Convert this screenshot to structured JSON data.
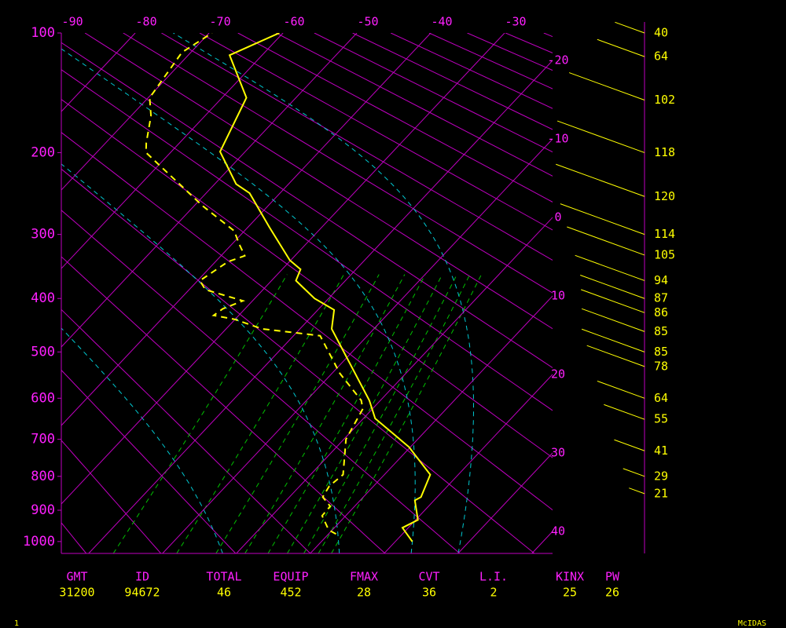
{
  "chart_data": {
    "type": "skewt",
    "ylim": [
      1040,
      100
    ],
    "yticks": [
      100,
      200,
      300,
      400,
      500,
      600,
      700,
      800,
      900,
      1000
    ],
    "xlim": [
      -23.7,
      42.8
    ],
    "xticks": [
      -90,
      -80,
      -70,
      -60,
      -50,
      -40,
      -30
    ],
    "isotherm_ticks": [
      -20,
      -10,
      0,
      10,
      20,
      30,
      40
    ],
    "axis_color": "#ff20ff",
    "series": [
      {
        "color": "#ffff00",
        "style": "solid",
        "pressure": [
          1000,
          955,
          930,
          870,
          860,
          795,
          720,
          648,
          605,
          582,
          455,
          420,
          400,
          370,
          352,
          338,
          290,
          246,
          235,
          199,
          148,
          115,
          100
        ],
        "values": [
          22.3,
          19.2,
          20.3,
          17.4,
          17.8,
          16.2,
          9.8,
          1.6,
          -1.5,
          -3.5,
          -15.7,
          -17.8,
          -21.9,
          -26.7,
          -27.5,
          -30.1,
          -37.1,
          -44.1,
          -47.1,
          -53.4,
          -56.7,
          -64.4,
          -60.5
        ]
      },
      {
        "color": "#ffff00",
        "style": "dashed",
        "pressure": [
          975,
          962,
          917,
          888,
          860,
          828,
          795,
          700,
          625,
          605,
          545,
          468,
          461,
          455,
          437,
          430,
          418,
          404,
          385,
          370,
          340,
          331,
          314,
          295,
          262,
          200,
          190,
          164,
          148,
          113,
          100
        ],
        "values": [
          11.0,
          9.5,
          6.8,
          6.7,
          4.5,
          4.0,
          4.4,
          0.3,
          -1.3,
          -2.6,
          -8.9,
          -16.4,
          -20.9,
          -25.1,
          -30.1,
          -33.4,
          -33.0,
          -31.3,
          -37.8,
          -39.7,
          -38.3,
          -36.8,
          -39.0,
          -41.4,
          -48.8,
          -63.3,
          -64.5,
          -67.3,
          -69.8,
          -71.2,
          -69.6
        ]
      }
    ],
    "wind": {
      "color": "#ffff00",
      "pressure": [
        100,
        116,
        150,
        200,
        250,
        300,
        330,
        370,
        400,
        425,
        460,
        500,
        530,
        600,
        650,
        730,
        800,
        850
      ],
      "speeds": [
        40,
        64,
        102,
        118,
        120,
        114,
        105,
        94,
        87,
        86,
        85,
        85,
        78,
        64,
        55,
        41,
        29,
        21
      ]
    },
    "stats": {
      "label_color": "#ff20ff",
      "value_color": "#ffff00",
      "labels": [
        "GMT",
        "ID",
        "TOTAL",
        "EQUIP",
        "FMAX",
        "CVT",
        "L.I.",
        "KINX",
        "PW"
      ],
      "values": [
        31200,
        94672,
        46,
        452,
        28,
        36,
        2,
        25,
        26
      ]
    }
  },
  "footer": {
    "left": "1",
    "right": "McIDAS"
  }
}
